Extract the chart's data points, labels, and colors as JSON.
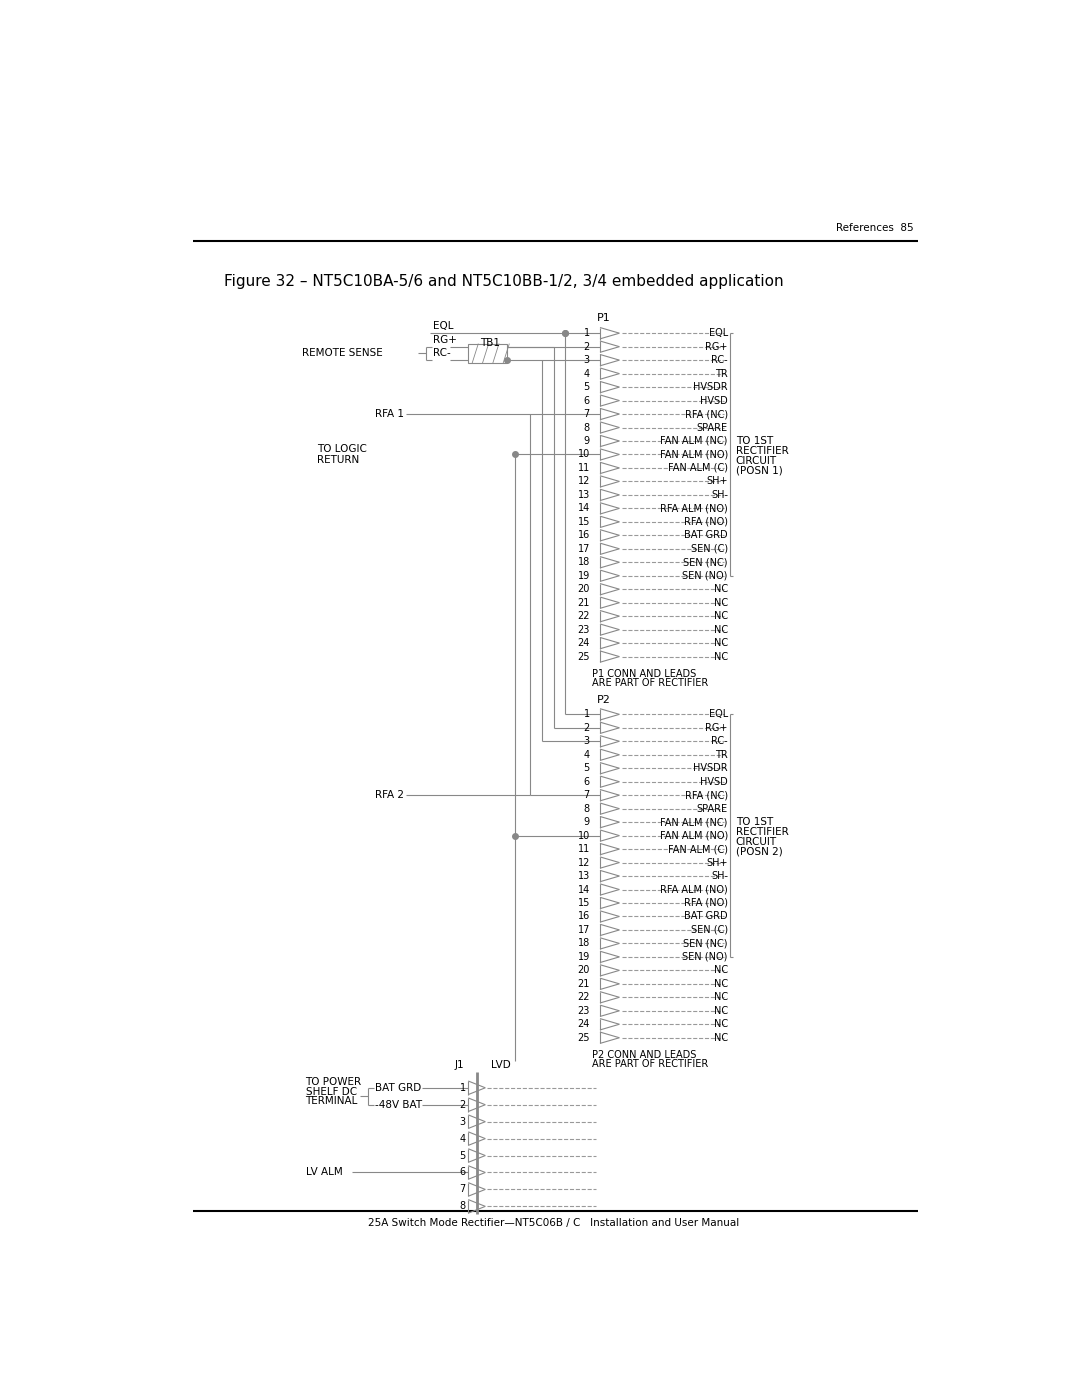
{
  "page_header_right": "References  85",
  "figure_title": "Figure 32 – NT5C10BA-5/6 and NT5C10BB-1/2, 3/4 embedded application",
  "footer_text": "25A Switch Mode Rectifier—NT5C06B / C   Installation and User Manual",
  "bg_color": "#ffffff",
  "text_color": "#000000",
  "line_color": "#888888",
  "dashed_color": "#999999",
  "p1_pins": [
    "EQL",
    "RG+",
    "RC-",
    "TR",
    "HVSDR",
    "HVSD",
    "RFA (NC)",
    "SPARE",
    "FAN ALM (NC)",
    "FAN ALM (NO)",
    "FAN ALM (C)",
    "SH+",
    "SH-",
    "RFA ALM (NO)",
    "RFA (NO)",
    "BAT GRD",
    "SEN (C)",
    "SEN (NC)",
    "SEN (NO)",
    "NC",
    "NC",
    "NC",
    "NC",
    "NC",
    "NC"
  ],
  "p2_pins": [
    "EQL",
    "RG+",
    "RC-",
    "TR",
    "HVSDR",
    "HVSD",
    "RFA (NC)",
    "SPARE",
    "FAN ALM (NC)",
    "FAN ALM (NO)",
    "FAN ALM (C)",
    "SH+",
    "SH-",
    "RFA ALM (NO)",
    "RFA (NO)",
    "BAT GRD",
    "SEN (C)",
    "SEN (NC)",
    "SEN (NO)",
    "NC",
    "NC",
    "NC",
    "NC",
    "NC",
    "NC"
  ]
}
